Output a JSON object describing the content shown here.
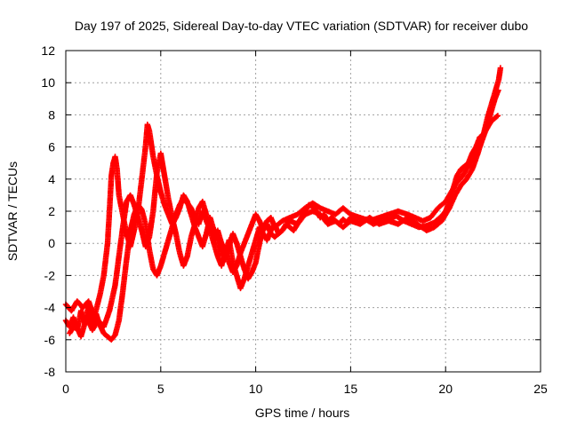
{
  "chart_data": {
    "type": "scatter",
    "title": "Day 197 of 2025, Sidereal Day-to-day VTEC variation (SDTVAR) for receiver dubo",
    "xlabel": "GPS time / hours",
    "ylabel": "SDTVAR / TECUs",
    "xlim": [
      0,
      25
    ],
    "ylim": [
      -8,
      12
    ],
    "xticks": [
      0,
      5,
      10,
      15,
      20,
      25
    ],
    "yticks": [
      -8,
      -6,
      -4,
      -2,
      0,
      2,
      4,
      6,
      8,
      10,
      12
    ],
    "grid": true,
    "marker": "+",
    "series": [
      {
        "color": "#ff0000",
        "tracks": [
          [
            [
              0.0,
              -4.8
            ],
            [
              0.2,
              -5.2
            ],
            [
              0.4,
              -4.6
            ],
            [
              0.6,
              -5.4
            ],
            [
              0.8,
              -4.2
            ],
            [
              1.0,
              -5.0
            ],
            [
              1.2,
              -3.9
            ],
            [
              1.4,
              -5.3
            ],
            [
              1.6,
              -4.4
            ],
            [
              1.8,
              -5.1
            ],
            [
              2.0,
              -5.6
            ],
            [
              2.2,
              -5.8
            ],
            [
              2.4,
              -6.0
            ],
            [
              2.6,
              -5.7
            ],
            [
              2.8,
              -4.8
            ],
            [
              3.0,
              -3.0
            ],
            [
              3.2,
              -1.0
            ],
            [
              3.4,
              0.8
            ],
            [
              3.6,
              1.8
            ],
            [
              3.8,
              2.4
            ],
            [
              4.0,
              2.1
            ],
            [
              4.2,
              1.2
            ],
            [
              4.4,
              -0.4
            ],
            [
              4.6,
              -1.6
            ],
            [
              4.8,
              -2.0
            ],
            [
              5.0,
              -1.4
            ],
            [
              5.2,
              -0.6
            ],
            [
              5.4,
              0.2
            ],
            [
              5.6,
              1.0
            ],
            [
              5.8,
              1.8
            ],
            [
              6.0,
              2.4
            ],
            [
              6.2,
              2.8
            ],
            [
              6.4,
              2.5
            ],
            [
              6.6,
              2.2
            ],
            [
              6.8,
              1.6
            ],
            [
              7.0,
              1.2
            ],
            [
              7.2,
              2.0
            ],
            [
              7.4,
              1.4
            ],
            [
              7.6,
              0.8
            ],
            [
              7.8,
              0.0
            ],
            [
              8.0,
              -0.8
            ],
            [
              8.2,
              -1.4
            ],
            [
              8.4,
              -0.6
            ],
            [
              8.6,
              0.2
            ],
            [
              8.8,
              -1.2
            ],
            [
              9.0,
              -2.0
            ],
            [
              9.2,
              -2.8
            ],
            [
              9.4,
              -2.2
            ],
            [
              9.6,
              -1.4
            ],
            [
              9.8,
              -0.6
            ],
            [
              10.0,
              0.2
            ],
            [
              10.2,
              1.0
            ],
            [
              10.4,
              0.6
            ],
            [
              10.6,
              0.2
            ],
            [
              10.8,
              0.8
            ],
            [
              11.0,
              1.2
            ],
            [
              11.2,
              0.6
            ],
            [
              11.4,
              0.8
            ],
            [
              11.6,
              1.2
            ],
            [
              11.8,
              1.0
            ],
            [
              12.0,
              0.8
            ],
            [
              12.2,
              1.2
            ],
            [
              12.4,
              1.6
            ],
            [
              12.6,
              2.0
            ],
            [
              12.8,
              2.4
            ],
            [
              13.0,
              2.3
            ],
            [
              13.2,
              2.0
            ],
            [
              13.4,
              1.6
            ],
            [
              13.6,
              1.8
            ],
            [
              13.8,
              1.4
            ],
            [
              14.0,
              1.6
            ],
            [
              14.2,
              1.4
            ],
            [
              14.4,
              1.2
            ],
            [
              14.6,
              1.5
            ],
            [
              14.8,
              1.3
            ],
            [
              15.0,
              1.6
            ],
            [
              15.4,
              1.3
            ],
            [
              15.8,
              1.5
            ],
            [
              16.2,
              1.2
            ],
            [
              16.6,
              1.4
            ],
            [
              17.0,
              1.5
            ],
            [
              17.4,
              1.7
            ],
            [
              17.8,
              1.4
            ],
            [
              18.2,
              1.2
            ],
            [
              18.6,
              1.0
            ],
            [
              19.0,
              1.1
            ],
            [
              19.4,
              1.3
            ],
            [
              19.8,
              1.7
            ],
            [
              20.0,
              2.0
            ],
            [
              20.2,
              2.6
            ],
            [
              20.4,
              3.4
            ],
            [
              20.6,
              4.2
            ],
            [
              20.8,
              4.6
            ],
            [
              21.0,
              4.8
            ],
            [
              21.2,
              5.0
            ],
            [
              21.4,
              5.6
            ],
            [
              21.6,
              6.0
            ],
            [
              21.8,
              6.6
            ],
            [
              22.0,
              6.8
            ],
            [
              22.2,
              7.2
            ],
            [
              22.4,
              7.6
            ],
            [
              22.6,
              7.8
            ],
            [
              22.8,
              8.0
            ]
          ],
          [
            [
              0.0,
              -3.8
            ],
            [
              0.3,
              -4.2
            ],
            [
              0.6,
              -3.6
            ],
            [
              0.9,
              -4.0
            ],
            [
              1.2,
              -3.6
            ],
            [
              1.5,
              -4.6
            ],
            [
              1.8,
              -3.2
            ],
            [
              2.0,
              -2.0
            ],
            [
              2.2,
              0.0
            ],
            [
              2.3,
              2.0
            ],
            [
              2.4,
              4.2
            ],
            [
              2.5,
              5.0
            ],
            [
              2.6,
              5.4
            ],
            [
              2.7,
              4.6
            ],
            [
              2.8,
              3.0
            ],
            [
              3.0,
              1.8
            ],
            [
              3.2,
              0.6
            ],
            [
              3.4,
              -0.2
            ],
            [
              3.6,
              0.8
            ],
            [
              3.8,
              2.0
            ],
            [
              4.0,
              4.0
            ],
            [
              4.2,
              6.0
            ],
            [
              4.3,
              7.4
            ],
            [
              4.4,
              7.0
            ],
            [
              4.6,
              5.4
            ],
            [
              4.8,
              4.2
            ],
            [
              5.0,
              3.2
            ],
            [
              5.2,
              2.4
            ],
            [
              5.4,
              1.8
            ],
            [
              5.6,
              1.2
            ],
            [
              5.8,
              1.6
            ],
            [
              6.0,
              2.2
            ],
            [
              6.2,
              3.0
            ],
            [
              6.4,
              2.6
            ],
            [
              6.6,
              1.8
            ],
            [
              6.8,
              1.0
            ],
            [
              7.0,
              0.4
            ],
            [
              7.2,
              -0.2
            ],
            [
              7.4,
              0.6
            ],
            [
              7.6,
              1.6
            ],
            [
              7.8,
              0.8
            ],
            [
              8.0,
              0.2
            ],
            [
              8.2,
              -0.6
            ],
            [
              8.4,
              -1.0
            ],
            [
              8.6,
              -0.2
            ],
            [
              8.8,
              0.6
            ],
            [
              9.0,
              0.0
            ],
            [
              9.2,
              -0.8
            ],
            [
              9.4,
              -1.6
            ],
            [
              9.6,
              -2.2
            ],
            [
              9.8,
              -1.8
            ],
            [
              10.0,
              -1.2
            ],
            [
              10.2,
              0.0
            ],
            [
              10.4,
              1.0
            ],
            [
              10.6,
              1.4
            ],
            [
              10.8,
              1.6
            ],
            [
              11.0,
              1.0
            ],
            [
              11.4,
              1.4
            ],
            [
              11.8,
              1.6
            ],
            [
              12.2,
              1.8
            ],
            [
              12.6,
              2.2
            ],
            [
              13.0,
              2.5
            ],
            [
              13.4,
              2.2
            ],
            [
              13.8,
              2.0
            ],
            [
              14.2,
              1.8
            ],
            [
              14.6,
              2.2
            ],
            [
              15.0,
              1.8
            ],
            [
              15.5,
              1.6
            ],
            [
              16.0,
              1.4
            ],
            [
              16.5,
              1.6
            ],
            [
              17.0,
              1.8
            ],
            [
              17.5,
              2.0
            ],
            [
              18.0,
              1.8
            ],
            [
              18.4,
              1.6
            ],
            [
              18.8,
              1.4
            ],
            [
              19.2,
              1.6
            ],
            [
              19.6,
              2.2
            ],
            [
              20.0,
              2.6
            ],
            [
              20.3,
              3.2
            ],
            [
              20.6,
              3.8
            ],
            [
              20.9,
              4.2
            ],
            [
              21.2,
              4.8
            ],
            [
              21.5,
              5.4
            ],
            [
              21.8,
              6.0
            ],
            [
              22.1,
              7.0
            ],
            [
              22.4,
              8.2
            ],
            [
              22.6,
              9.0
            ],
            [
              22.8,
              9.6
            ]
          ],
          [
            [
              0.2,
              -5.6
            ],
            [
              0.5,
              -5.0
            ],
            [
              0.8,
              -5.8
            ],
            [
              1.1,
              -4.6
            ],
            [
              1.4,
              -5.4
            ],
            [
              1.7,
              -4.8
            ],
            [
              2.0,
              -5.2
            ],
            [
              2.3,
              -4.2
            ],
            [
              2.6,
              -2.6
            ],
            [
              2.8,
              -0.8
            ],
            [
              3.0,
              1.0
            ],
            [
              3.2,
              2.6
            ],
            [
              3.4,
              3.0
            ],
            [
              3.6,
              2.4
            ],
            [
              3.8,
              1.6
            ],
            [
              4.0,
              0.8
            ],
            [
              4.2,
              -0.2
            ],
            [
              4.4,
              0.4
            ],
            [
              4.6,
              2.0
            ],
            [
              4.8,
              4.4
            ],
            [
              5.0,
              5.6
            ],
            [
              5.2,
              4.2
            ],
            [
              5.4,
              2.8
            ],
            [
              5.6,
              1.6
            ],
            [
              5.8,
              0.6
            ],
            [
              6.0,
              -0.6
            ],
            [
              6.2,
              -1.4
            ],
            [
              6.4,
              -0.8
            ],
            [
              6.6,
              0.4
            ],
            [
              6.8,
              1.2
            ],
            [
              7.0,
              2.2
            ],
            [
              7.2,
              2.6
            ],
            [
              7.4,
              1.8
            ],
            [
              7.6,
              1.0
            ],
            [
              7.8,
              0.4
            ],
            [
              8.0,
              0.8
            ],
            [
              8.2,
              0.0
            ],
            [
              8.4,
              -0.4
            ],
            [
              8.6,
              -1.2
            ],
            [
              8.8,
              -1.8
            ],
            [
              9.0,
              -1.4
            ],
            [
              9.2,
              -0.6
            ],
            [
              9.4,
              0.0
            ],
            [
              9.6,
              0.6
            ],
            [
              9.8,
              1.2
            ],
            [
              10.0,
              1.8
            ],
            [
              10.2,
              1.4
            ],
            [
              10.4,
              0.8
            ],
            [
              10.6,
              1.2
            ],
            [
              10.8,
              0.6
            ],
            [
              11.0,
              0.4
            ],
            [
              11.4,
              0.8
            ],
            [
              11.8,
              1.4
            ],
            [
              12.2,
              1.2
            ],
            [
              12.6,
              1.8
            ],
            [
              13.0,
              2.0
            ],
            [
              13.4,
              1.8
            ],
            [
              13.8,
              1.2
            ],
            [
              14.2,
              1.4
            ],
            [
              14.6,
              1.0
            ],
            [
              15.0,
              1.4
            ],
            [
              15.5,
              1.2
            ],
            [
              16.0,
              1.6
            ],
            [
              16.5,
              1.2
            ],
            [
              17.0,
              1.4
            ],
            [
              17.5,
              1.2
            ],
            [
              18.0,
              1.6
            ],
            [
              18.5,
              1.2
            ],
            [
              19.0,
              0.8
            ],
            [
              19.4,
              1.0
            ],
            [
              19.8,
              1.4
            ],
            [
              20.2,
              2.2
            ],
            [
              20.5,
              3.0
            ],
            [
              20.8,
              3.6
            ],
            [
              21.1,
              4.0
            ],
            [
              21.4,
              4.6
            ],
            [
              21.7,
              5.6
            ],
            [
              22.0,
              6.8
            ],
            [
              22.2,
              7.8
            ],
            [
              22.4,
              8.6
            ],
            [
              22.6,
              9.4
            ],
            [
              22.8,
              10.2
            ],
            [
              22.9,
              11.0
            ]
          ]
        ]
      }
    ]
  }
}
